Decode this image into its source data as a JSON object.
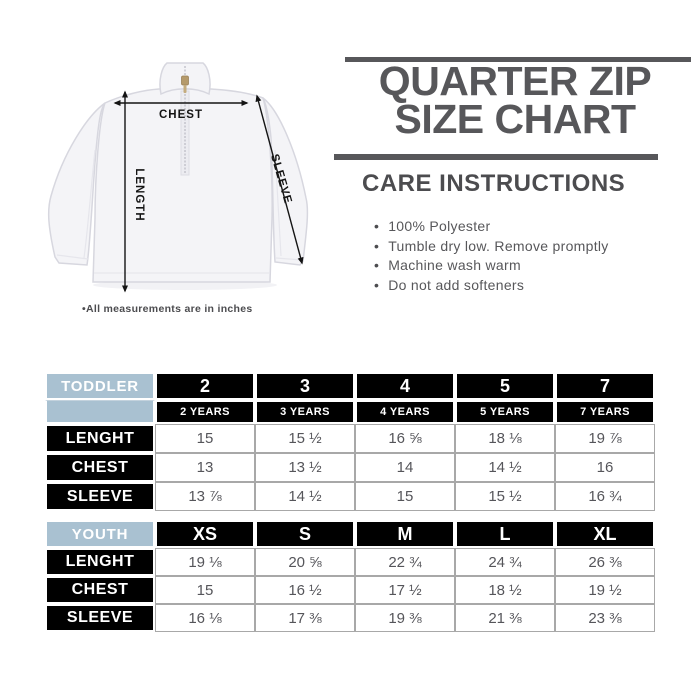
{
  "title": {
    "line1": "QUARTER ZIP",
    "line2": "SIZE CHART"
  },
  "care": {
    "heading": "CARE INSTRUCTIONS",
    "items": [
      "100% Polyester",
      "Tumble dry low. Remove promptly",
      "Machine wash warm",
      "Do not add softeners"
    ]
  },
  "diagram": {
    "labels": {
      "chest": "CHEST",
      "length": "LENGTH",
      "sleeve": "SLEEVE"
    },
    "note": "•All measurements are in inches"
  },
  "colors": {
    "accent_dark_gray": "#57575a",
    "header_blue": "#a9c1d1",
    "header_black": "#000000",
    "value_gray": "#55555a"
  },
  "chart_data": [
    {
      "type": "table",
      "name": "toddler",
      "group_label": "TODDLER",
      "columns": [
        "2",
        "3",
        "4",
        "5",
        "7"
      ],
      "column_sublabels": [
        "2 YEARS",
        "3 YEARS",
        "4 YEARS",
        "5 YEARS",
        "7 YEARS"
      ],
      "rows": [
        {
          "label": "LENGHT",
          "values": [
            "15",
            "15 ½",
            "16 ⅝",
            "18 ⅛",
            "19 ⅞"
          ]
        },
        {
          "label": "CHEST",
          "values": [
            "13",
            "13 ½",
            "14",
            "14 ½",
            "16"
          ]
        },
        {
          "label": "SLEEVE",
          "values": [
            "13 ⅞",
            "14 ½",
            "15",
            "15 ½",
            "16 ¾"
          ]
        }
      ]
    },
    {
      "type": "table",
      "name": "youth",
      "group_label": "YOUTH",
      "columns": [
        "XS",
        "S",
        "M",
        "L",
        "XL"
      ],
      "column_sublabels": null,
      "rows": [
        {
          "label": "LENGHT",
          "values": [
            "19 ⅛",
            "20 ⅝",
            "22 ¾",
            "24 ¾",
            "26 ⅜"
          ]
        },
        {
          "label": "CHEST",
          "values": [
            "15",
            "16 ½",
            "17 ½",
            "18 ½",
            "19 ½"
          ]
        },
        {
          "label": "SLEEVE",
          "values": [
            "16 ⅛",
            "17 ⅜",
            "19 ⅜",
            "21 ⅜",
            "23 ⅜"
          ]
        }
      ]
    }
  ]
}
